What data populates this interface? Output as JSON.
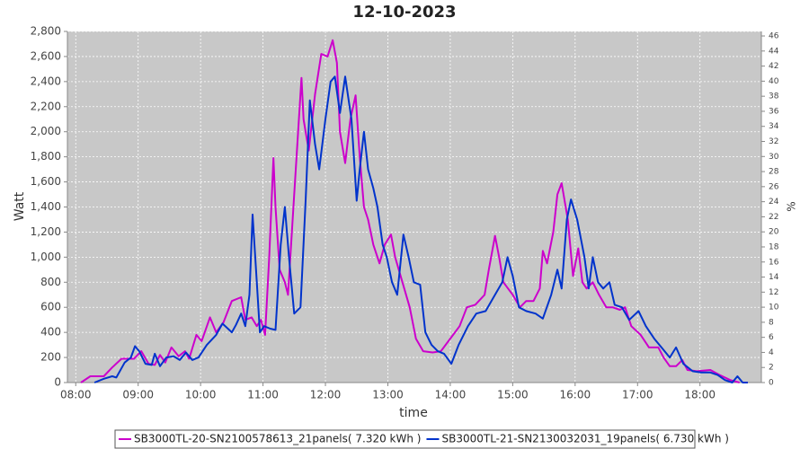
{
  "chart_data": {
    "type": "line",
    "title": "12-10-2023",
    "xlabel": "time",
    "ylabel": "Watt",
    "y2label": "%",
    "xlim": [
      "07:52",
      "18:59"
    ],
    "xticks": [
      "08:00",
      "09:00",
      "10:00",
      "11:00",
      "12:00",
      "13:00",
      "14:00",
      "15:00",
      "16:00",
      "17:00",
      "18:00"
    ],
    "ylim": [
      0,
      2800
    ],
    "yticks": [
      0,
      200,
      400,
      600,
      800,
      {
        "value": 1000,
        "label": "1,000"
      },
      {
        "value": 1200,
        "label": "1,200"
      },
      {
        "value": 1400,
        "label": "1,400"
      },
      {
        "value": 1600,
        "label": "1,600"
      },
      {
        "value": 1800,
        "label": "1,800"
      },
      {
        "value": 2000,
        "label": "2,000"
      },
      {
        "value": 2200,
        "label": "2,200"
      },
      {
        "value": 2400,
        "label": "2,400"
      },
      {
        "value": 2600,
        "label": "2,600"
      },
      {
        "value": 2800,
        "label": "2,800"
      }
    ],
    "y2lim": [
      0,
      46.6
    ],
    "y2ticks": [
      0,
      2,
      4,
      6,
      8,
      10,
      12,
      14,
      16,
      18,
      20,
      22,
      24,
      26,
      28,
      30,
      32,
      34,
      36,
      38,
      40,
      42,
      44,
      46
    ],
    "grid": true,
    "legend": "bottom",
    "series": [
      {
        "name": "SB3000TL-20-SN2100578613_21panels( 7.320 kWh )",
        "color": "#cc00cc",
        "x": [
          "08:05",
          "08:14",
          "08:27",
          "08:35",
          "08:44",
          "08:56",
          "09:03",
          "09:10",
          "09:16",
          "09:21",
          "09:26",
          "09:32",
          "09:39",
          "09:45",
          "09:49",
          "09:56",
          "10:01",
          "10:09",
          "10:15",
          "10:22",
          "10:30",
          "10:39",
          "10:43",
          "10:49",
          "10:54",
          "10:58",
          "11:02",
          "11:06",
          "11:10",
          "11:12",
          "11:16",
          "11:21",
          "11:24",
          "11:30",
          "11:37",
          "11:39",
          "11:44",
          "11:50",
          "11:56",
          "12:02",
          "12:07",
          "12:11",
          "12:14",
          "12:19",
          "12:24",
          "12:29",
          "12:33",
          "12:37",
          "12:41",
          "12:46",
          "12:52",
          "12:57",
          "13:03",
          "13:07",
          "13:14",
          "13:21",
          "13:27",
          "13:34",
          "13:43",
          "13:51",
          "14:00",
          "14:09",
          "14:16",
          "14:24",
          "14:33",
          "14:37",
          "14:43",
          "14:47",
          "14:51",
          "15:00",
          "15:07",
          "15:13",
          "15:20",
          "15:26",
          "15:29",
          "15:33",
          "15:39",
          "15:43",
          "15:47",
          "15:53",
          "15:58",
          "16:03",
          "16:07",
          "16:11",
          "16:17",
          "16:23",
          "16:30",
          "16:36",
          "16:43",
          "16:48",
          "16:54",
          "17:03",
          "17:11",
          "17:20",
          "17:25",
          "17:31",
          "17:37",
          "17:43",
          "17:48",
          "17:57",
          "18:10",
          "18:19",
          "18:29",
          "18:38"
        ],
        "values": [
          0,
          50,
          50,
          120,
          190,
          190,
          250,
          150,
          140,
          220,
          160,
          280,
          210,
          250,
          190,
          380,
          330,
          520,
          400,
          480,
          650,
          680,
          500,
          520,
          450,
          500,
          380,
          1000,
          1790,
          1400,
          900,
          800,
          700,
          1500,
          2430,
          2100,
          1850,
          2300,
          2620,
          2600,
          2730,
          2550,
          2000,
          1750,
          2100,
          2290,
          1800,
          1400,
          1300,
          1100,
          950,
          1100,
          1180,
          1000,
          800,
          600,
          350,
          250,
          240,
          250,
          350,
          450,
          600,
          620,
          700,
          900,
          1170,
          1000,
          800,
          700,
          600,
          650,
          650,
          750,
          1050,
          950,
          1200,
          1500,
          1590,
          1300,
          850,
          1070,
          800,
          750,
          800,
          700,
          600,
          600,
          580,
          600,
          450,
          380,
          280,
          280,
          200,
          130,
          130,
          180,
          100,
          90,
          100,
          60,
          20,
          0
        ]
      },
      {
        "name": "SB3000TL-21-SN2130032031_19panels( 6.730 kWh )",
        "color": "#0033cc",
        "x": [
          "08:18",
          "08:27",
          "08:35",
          "08:39",
          "08:47",
          "08:53",
          "08:57",
          "09:01",
          "09:07",
          "09:13",
          "09:16",
          "09:21",
          "09:27",
          "09:34",
          "09:40",
          "09:46",
          "09:52",
          "09:58",
          "10:06",
          "10:15",
          "10:21",
          "10:25",
          "10:30",
          "10:34",
          "10:39",
          "10:43",
          "10:47",
          "10:50",
          "10:54",
          "10:57",
          "11:01",
          "11:07",
          "11:12",
          "11:17",
          "11:21",
          "11:25",
          "11:30",
          "11:36",
          "11:41",
          "11:45",
          "11:50",
          "11:54",
          "12:00",
          "12:05",
          "12:09",
          "12:14",
          "12:19",
          "12:25",
          "12:30",
          "12:33",
          "12:37",
          "12:41",
          "12:46",
          "12:50",
          "12:55",
          "12:59",
          "13:04",
          "13:09",
          "13:15",
          "13:20",
          "13:25",
          "13:31",
          "13:36",
          "13:42",
          "13:48",
          "13:54",
          "14:01",
          "14:08",
          "14:17",
          "14:25",
          "14:34",
          "14:43",
          "14:50",
          "14:55",
          "15:00",
          "15:06",
          "15:13",
          "15:22",
          "15:29",
          "15:37",
          "15:43",
          "15:47",
          "15:52",
          "15:56",
          "16:02",
          "16:09",
          "16:13",
          "16:17",
          "16:22",
          "16:27",
          "16:33",
          "16:38",
          "16:45",
          "16:52",
          "17:01",
          "17:08",
          "17:16",
          "17:23",
          "17:31",
          "17:37",
          "17:44",
          "17:53",
          "18:01",
          "18:10",
          "18:17",
          "18:24",
          "18:31",
          "18:36",
          "18:41",
          "18:46"
        ],
        "values": [
          0,
          30,
          50,
          40,
          160,
          200,
          290,
          250,
          150,
          140,
          230,
          130,
          200,
          210,
          180,
          240,
          180,
          200,
          300,
          380,
          470,
          440,
          400,
          460,
          550,
          450,
          700,
          1340,
          800,
          400,
          450,
          430,
          420,
          1100,
          1400,
          1000,
          550,
          600,
          1450,
          2250,
          1900,
          1700,
          2100,
          2400,
          2440,
          2150,
          2440,
          2100,
          1450,
          1700,
          2000,
          1700,
          1550,
          1400,
          1100,
          1000,
          800,
          700,
          1180,
          1000,
          800,
          780,
          400,
          300,
          250,
          230,
          150,
          300,
          450,
          550,
          570,
          700,
          800,
          1000,
          850,
          600,
          570,
          550,
          510,
          700,
          900,
          750,
          1300,
          1460,
          1300,
          1000,
          750,
          1000,
          800,
          750,
          800,
          620,
          600,
          500,
          570,
          450,
          350,
          280,
          200,
          280,
          150,
          90,
          80,
          80,
          60,
          20,
          0,
          50,
          0,
          0
        ]
      }
    ]
  }
}
